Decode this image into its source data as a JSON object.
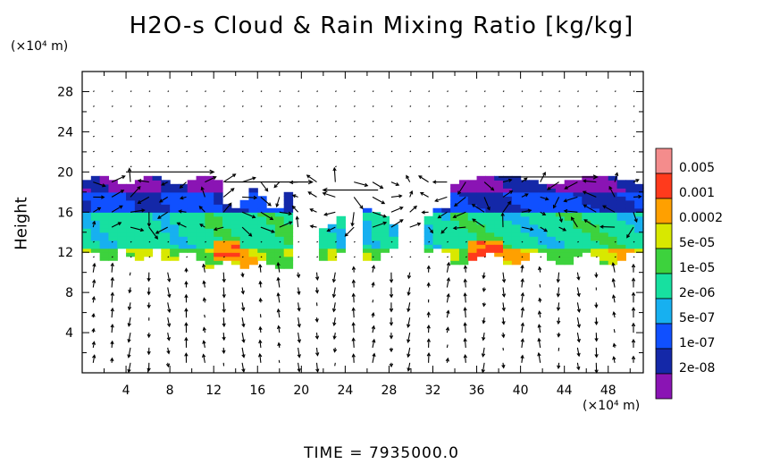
{
  "chart_data": {
    "type": "heatmap",
    "title": "H2O-s Cloud & Rain Mixing Ratio [kg/kg]",
    "xlabel": "",
    "ylabel": "Height",
    "x_unit": "(×10⁴ m)",
    "y_unit": "(×10⁴ m)",
    "xlim": [
      0,
      51.2
    ],
    "ylim": [
      0,
      30
    ],
    "x_ticks": [
      4,
      8,
      12,
      16,
      20,
      24,
      28,
      32,
      36,
      40,
      44,
      48
    ],
    "y_ticks": [
      4,
      8,
      12,
      16,
      20,
      24,
      28
    ],
    "colorbar": [
      {
        "label": "0.005",
        "color": "#f48c8c"
      },
      {
        "label": "0.001",
        "color": "#ff3a1c"
      },
      {
        "label": "0.0002",
        "color": "#ffa000"
      },
      {
        "label": "5e-05",
        "color": "#d8e800"
      },
      {
        "label": "1e-05",
        "color": "#3dd23d"
      },
      {
        "label": "2e-06",
        "color": "#17e0a0"
      },
      {
        "label": "5e-07",
        "color": "#17b0f0"
      },
      {
        "label": "1e-07",
        "color": "#1050ff"
      },
      {
        "label": "2e-08",
        "color": "#1428a8"
      },
      {
        "label": "",
        "color": "#8a14b4"
      }
    ],
    "regions": [
      {
        "name": "left-cloud-band",
        "x": [
          0,
          12
        ],
        "y": [
          11,
          20
        ]
      },
      {
        "name": "center-left-convection",
        "x": [
          12,
          19.5
        ],
        "y": [
          10.5,
          18
        ]
      },
      {
        "name": "mid-cloud-patches",
        "x": [
          22,
          34
        ],
        "y": [
          11,
          16.5
        ]
      },
      {
        "name": "right-cloud-band",
        "x": [
          34,
          51.2
        ],
        "y": [
          11,
          20
        ]
      }
    ]
  },
  "footer": {
    "time_text": "TIME = 7935000.0"
  }
}
